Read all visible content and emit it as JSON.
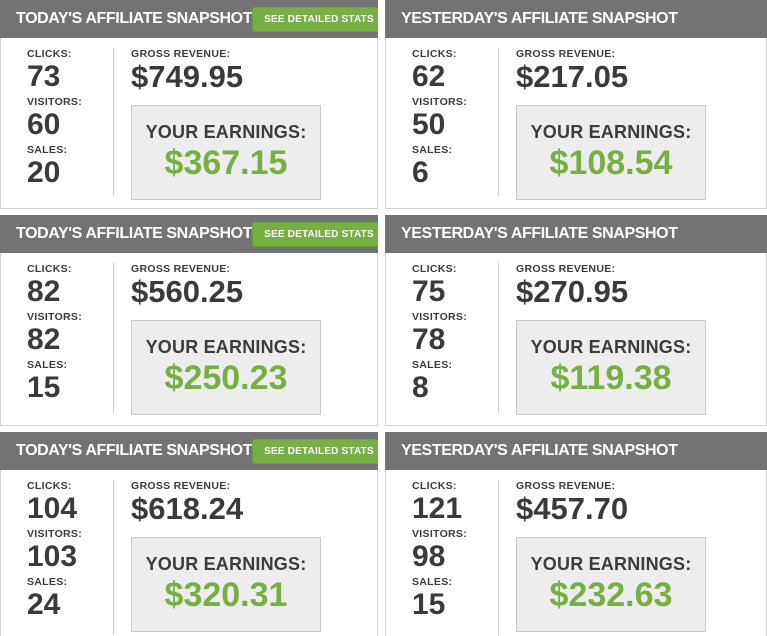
{
  "colors": {
    "accent_green": "#76b043",
    "play_circle_green": "#55882a",
    "header_gray": "#737373",
    "text_dark": "#3a3a3a",
    "earnings_box_bg": "#ededed"
  },
  "labels": {
    "clicks": "CLICKS:",
    "visitors": "VISITORS:",
    "sales": "SALES:",
    "gross_revenue": "GROSS REVENUE:",
    "your_earnings": "YOUR EARNINGS:"
  },
  "buttons": {
    "see_detailed_stats": "SEE DETAILED STATS",
    "icon": "play-icon"
  },
  "panels": [
    {
      "title": "TODAY'S AFFILIATE SNAPSHOT",
      "has_button": true,
      "clicks": "73",
      "visitors": "60",
      "sales": "20",
      "gross_revenue": "$749.95",
      "earnings": "$367.15"
    },
    {
      "title": "YESTERDAY'S AFFILIATE SNAPSHOT",
      "has_button": false,
      "clicks": "62",
      "visitors": "50",
      "sales": "6",
      "gross_revenue": "$217.05",
      "earnings": "$108.54"
    },
    {
      "title": "TODAY'S AFFILIATE SNAPSHOT",
      "has_button": true,
      "clicks": "82",
      "visitors": "82",
      "sales": "15",
      "gross_revenue": "$560.25",
      "earnings": "$250.23"
    },
    {
      "title": "YESTERDAY'S AFFILIATE SNAPSHOT",
      "has_button": false,
      "clicks": "75",
      "visitors": "78",
      "sales": "8",
      "gross_revenue": "$270.95",
      "earnings": "$119.38"
    },
    {
      "title": "TODAY'S AFFILIATE SNAPSHOT",
      "has_button": true,
      "clicks": "104",
      "visitors": "103",
      "sales": "24",
      "gross_revenue": "$618.24",
      "earnings": "$320.31"
    },
    {
      "title": "YESTERDAY'S AFFILIATE SNAPSHOT",
      "has_button": false,
      "clicks": "121",
      "visitors": "98",
      "sales": "15",
      "gross_revenue": "$457.70",
      "earnings": "$232.63"
    }
  ]
}
